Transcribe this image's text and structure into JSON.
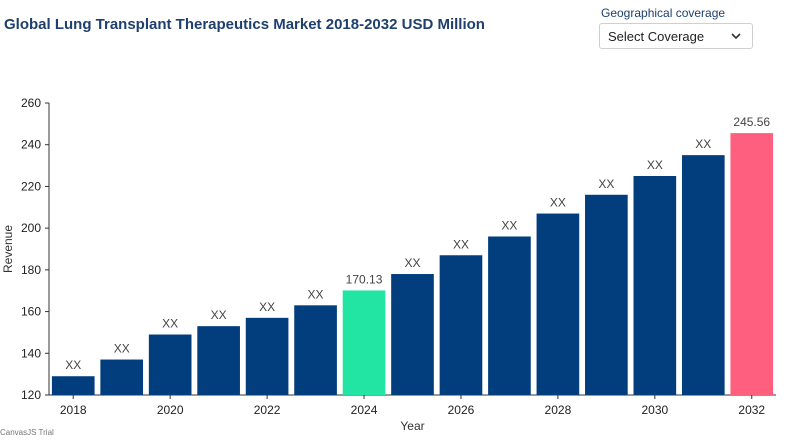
{
  "header": {
    "title": "Global Lung Transplant Therapeutics Market 2018-2032 USD Million"
  },
  "filter": {
    "label": "Geographical coverage",
    "selected": "Select Coverage"
  },
  "watermark": "CanvasJS Trial",
  "colors": {
    "bar": "#023e7d",
    "highlight_2024": "#22e4a3",
    "highlight_2032": "#ff5f7e",
    "title": "#1f3f6e"
  },
  "chart_data": {
    "type": "bar",
    "xlabel": "Year",
    "ylabel": "Revenue",
    "ylim": [
      120,
      260
    ],
    "yticks": [
      120,
      140,
      160,
      180,
      200,
      220,
      240,
      260
    ],
    "grid": false,
    "categories": [
      "2018",
      "2019",
      "2020",
      "2021",
      "2022",
      "2023",
      "2024",
      "2025",
      "2026",
      "2027",
      "2028",
      "2029",
      "2030",
      "2031",
      "2032"
    ],
    "x_tick_labels": [
      "2018",
      "2020",
      "2022",
      "2024",
      "2026",
      "2028",
      "2030",
      "2032"
    ],
    "values": [
      129,
      137,
      149,
      153,
      157,
      163,
      170.13,
      178,
      187,
      196,
      207,
      216,
      225,
      235,
      245.56
    ],
    "labels": [
      "XX",
      "XX",
      "XX",
      "XX",
      "XX",
      "XX",
      "170.13",
      "XX",
      "XX",
      "XX",
      "XX",
      "XX",
      "XX",
      "XX",
      "245.56"
    ],
    "highlights": {
      "2024": "#22e4a3",
      "2032": "#ff5f7e"
    }
  }
}
